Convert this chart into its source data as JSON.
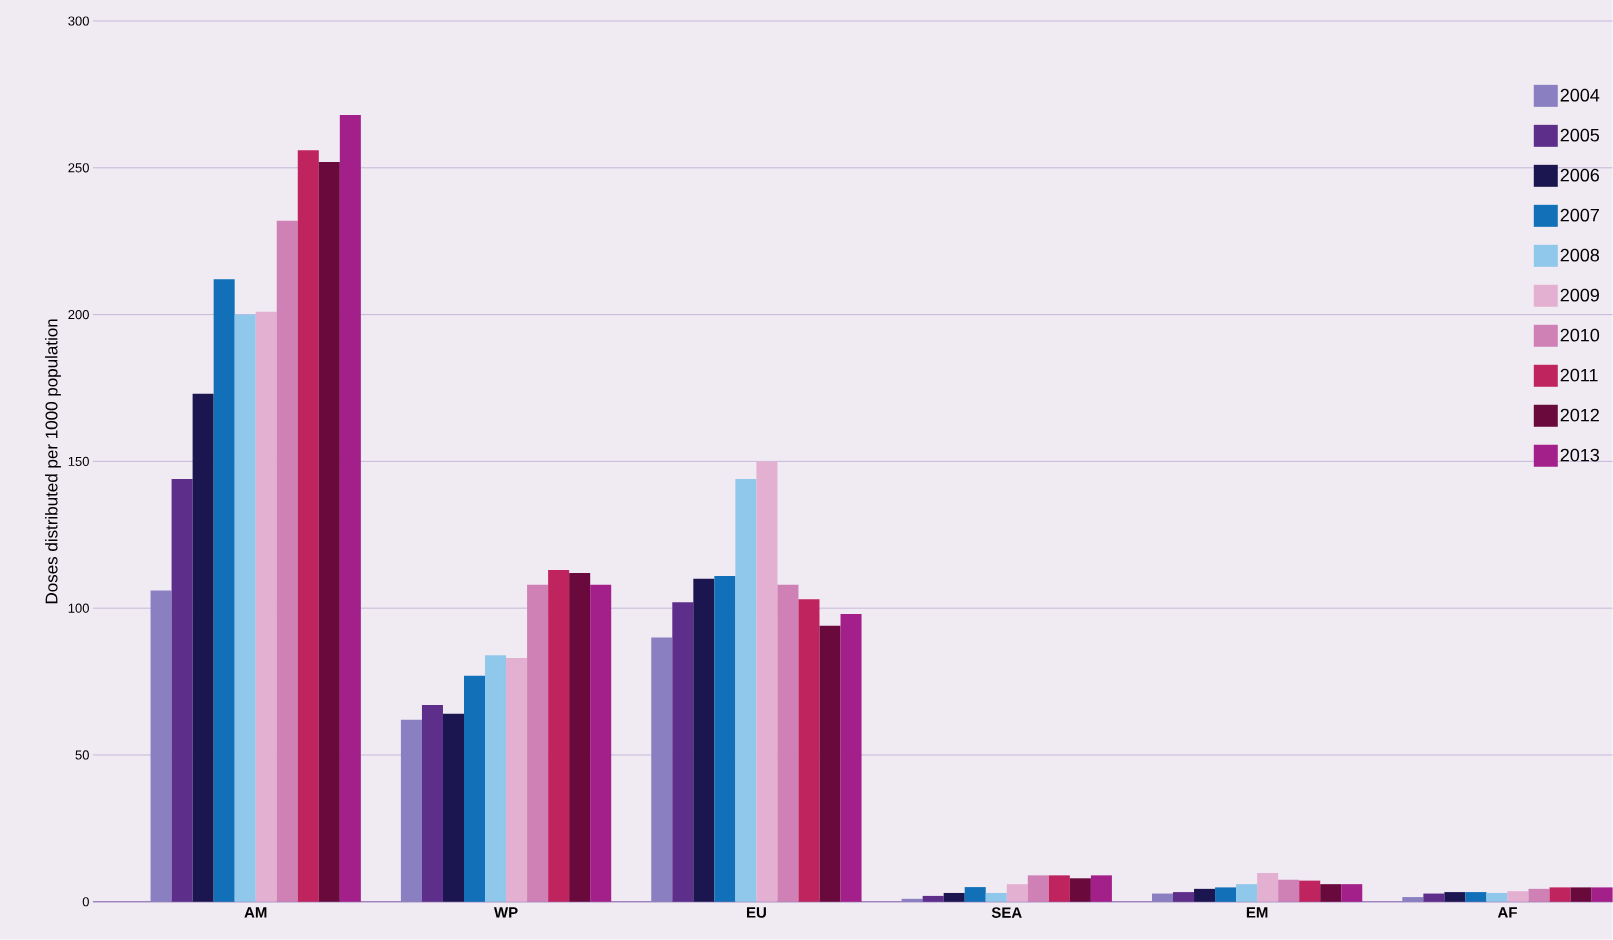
{
  "chart_data": {
    "type": "bar",
    "ylabel": "Doses distributed per 1000 population",
    "categories": [
      "AM",
      "WP",
      "EU",
      "SEA",
      "EM",
      "AF"
    ],
    "series": [
      {
        "name": "2004",
        "color": "#8a7fc0",
        "values": [
          106,
          62,
          90,
          1,
          2.8,
          1.6
        ]
      },
      {
        "name": "2005",
        "color": "#5e2f8a",
        "values": [
          144,
          67,
          102,
          2,
          3.3,
          2.8
        ]
      },
      {
        "name": "2006",
        "color": "#1c1650",
        "values": [
          173,
          64,
          110,
          3,
          4.4,
          3.3
        ]
      },
      {
        "name": "2007",
        "color": "#1170b8",
        "values": [
          212,
          77,
          111,
          5,
          4.9,
          3.3
        ]
      },
      {
        "name": "2008",
        "color": "#8fc8ea",
        "values": [
          200,
          84,
          144,
          3,
          6,
          3
        ]
      },
      {
        "name": "2009",
        "color": "#e3b0d2",
        "values": [
          201,
          83,
          150,
          6,
          9.8,
          3.6
        ]
      },
      {
        "name": "2010",
        "color": "#cf80b5",
        "values": [
          232,
          108,
          108,
          9,
          7.5,
          4.4
        ]
      },
      {
        "name": "2011",
        "color": "#c0245e",
        "values": [
          256,
          113,
          103,
          9,
          7.2,
          4.9
        ]
      },
      {
        "name": "2012",
        "color": "#6a0a3c",
        "values": [
          252,
          112,
          94,
          8,
          6,
          4.9
        ]
      },
      {
        "name": "2013",
        "color": "#a3208a",
        "values": [
          268,
          108,
          98,
          9,
          6,
          4.9
        ]
      }
    ],
    "ylim": [
      0,
      300
    ],
    "yticks": [
      0,
      50,
      100,
      150,
      200,
      250,
      300
    ],
    "grid": "y",
    "legend": "top right"
  }
}
